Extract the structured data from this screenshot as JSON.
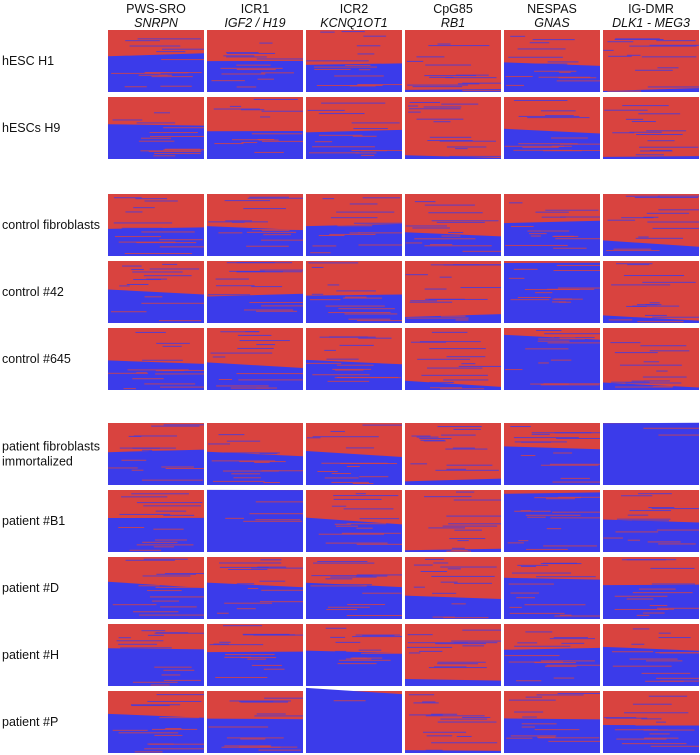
{
  "columns": [
    {
      "region": "PWS-SRO",
      "gene": "SNRPN"
    },
    {
      "region": "ICR1",
      "gene": "IGF2 / H19"
    },
    {
      "region": "ICR2",
      "gene": "KCNQ1OT1"
    },
    {
      "region": "CpG85",
      "gene": "RB1"
    },
    {
      "region": "NESPAS",
      "gene": "GNAS"
    },
    {
      "region": "IG-DMR",
      "gene": "DLK1 - MEG3"
    }
  ],
  "rows": [
    {
      "lines": [
        "hESC H1"
      ]
    },
    {
      "lines": [
        "hESCs H9"
      ]
    },
    {
      "lines": [
        "control fibroblasts"
      ]
    },
    {
      "lines": [
        "control #42"
      ]
    },
    {
      "lines": [
        "control #645"
      ]
    },
    {
      "lines": [
        "patient fibroblasts",
        "immortalized"
      ]
    },
    {
      "lines": [
        "patient #B1"
      ]
    },
    {
      "lines": [
        "patient #D"
      ]
    },
    {
      "lines": [
        "patient #H"
      ]
    },
    {
      "lines": [
        "patient #P"
      ]
    }
  ]
}
